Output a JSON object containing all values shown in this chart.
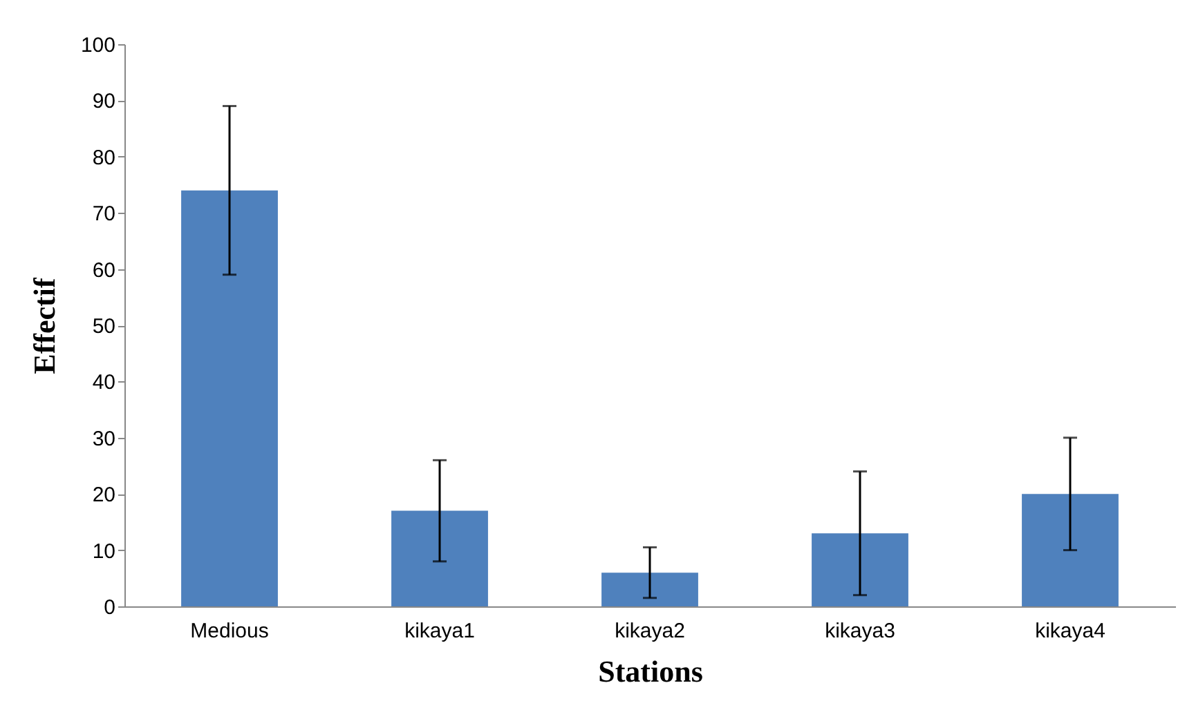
{
  "chart_data": {
    "type": "bar",
    "xlabel": "Stations",
    "ylabel": "Effectif",
    "categories": [
      "Medious",
      "kikaya1",
      "kikaya2",
      "kikaya3",
      "kikaya4"
    ],
    "values": [
      74,
      17,
      6,
      13,
      20
    ],
    "errors": [
      15,
      9,
      4.5,
      11,
      10
    ],
    "color": "#4f81bd",
    "ylim": [
      0,
      100
    ],
    "yticks": [
      0,
      10,
      20,
      30,
      40,
      50,
      60,
      70,
      80,
      90,
      100
    ],
    "grid": false
  }
}
